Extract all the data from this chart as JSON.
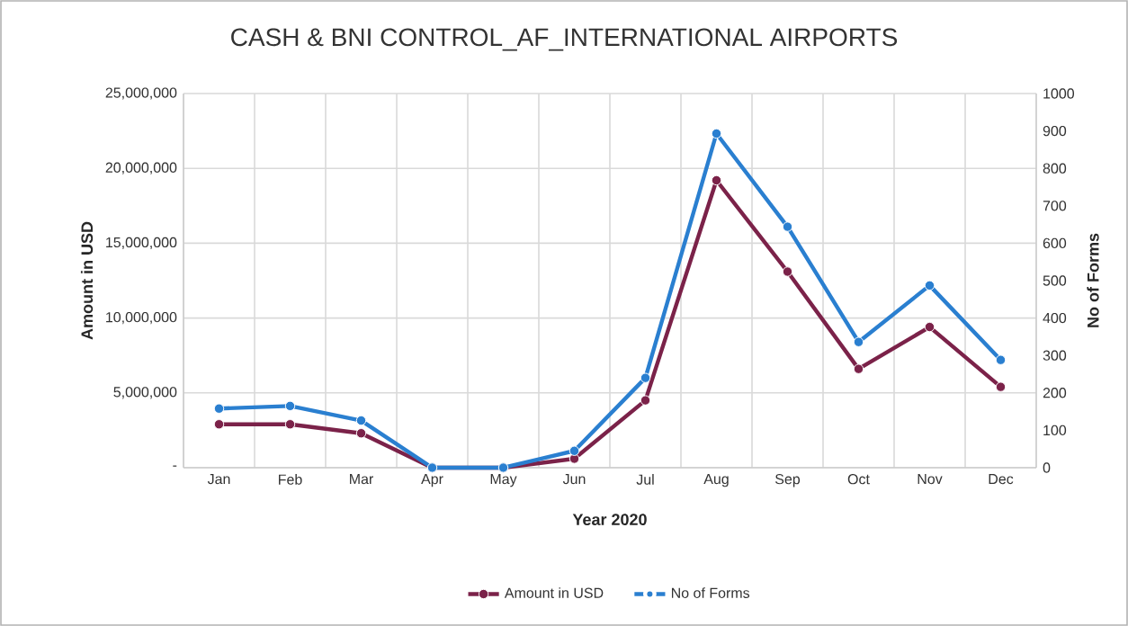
{
  "chart_data": {
    "type": "line",
    "title": "CASH & BNI CONTROL_AF_INTERNATIONAL AIRPORTS",
    "xlabel": "Year 2020",
    "ylabel": "Amount in USD",
    "y2label": "No of Forms",
    "categories": [
      "Jan",
      "Feb",
      "Mar",
      "Apr",
      "May",
      "Jun",
      "Jul",
      "Aug",
      "Sep",
      "Oct",
      "Nov",
      "Dec"
    ],
    "series": [
      {
        "name": "Amount in USD",
        "color": "#7b2249",
        "values": [
          2900000,
          2900000,
          2300000,
          0,
          0,
          600000,
          4500000,
          19200000,
          13100000,
          6600000,
          9400000,
          5400000
        ]
      },
      {
        "name": "No of Forms",
        "color": "#2a7fd0",
        "axis": "y2",
        "values": [
          158,
          165,
          126,
          0,
          0,
          45,
          240,
          893,
          644,
          336,
          487,
          288
        ]
      }
    ],
    "ylim": [
      0,
      25000000
    ],
    "yticks": [
      {
        "value": 0,
        "label": "-"
      },
      {
        "value": 5000000,
        "label": "5,000,000"
      },
      {
        "value": 10000000,
        "label": "10,000,000"
      },
      {
        "value": 15000000,
        "label": "15,000,000"
      },
      {
        "value": 20000000,
        "label": "20,000,000"
      },
      {
        "value": 25000000,
        "label": "25,000,000"
      }
    ],
    "y2lim": [
      0,
      1000
    ],
    "y2ticks": [
      0,
      100,
      200,
      300,
      400,
      500,
      600,
      700,
      800,
      900,
      1000
    ],
    "grid": true,
    "legend": "bottom",
    "marker": "circle",
    "line_style": "solid"
  }
}
